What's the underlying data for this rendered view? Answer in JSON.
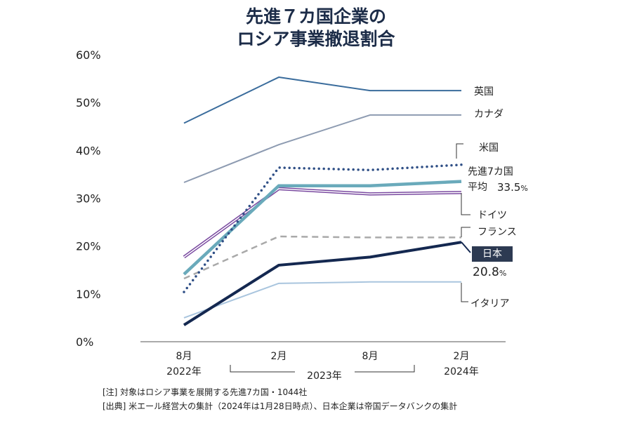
{
  "chart_data": {
    "type": "line",
    "title_lines": [
      "先進７カ国企業の",
      "ロシア事業撤退割合"
    ],
    "x_ticks": [
      {
        "month": "8月",
        "year": "2022年"
      },
      {
        "month": "2月",
        "year": ""
      },
      {
        "month": "8月",
        "year": ""
      },
      {
        "month": "2月",
        "year": "2024年"
      }
    ],
    "x_group_label": "2023年",
    "ylim": [
      0,
      60
    ],
    "y_ticks": [
      "0%",
      "10%",
      "20%",
      "30%",
      "40%",
      "50%",
      "60%"
    ],
    "y_tick_values": [
      0,
      10,
      20,
      30,
      40,
      50,
      60
    ],
    "grid": false,
    "legend": "direct labels at right",
    "series": [
      {
        "name": "英国",
        "values": [
          45.7,
          55.3,
          52.5,
          52.5
        ],
        "color": "#3a6c9c",
        "style": "solid"
      },
      {
        "name": "カナダ",
        "values": [
          33.3,
          41.2,
          47.4,
          47.4
        ],
        "color": "#8d9bb1",
        "style": "solid"
      },
      {
        "name": "米国",
        "values": [
          10.4,
          36.4,
          35.9,
          37.0
        ],
        "color": "#2f4f86",
        "style": "dotted"
      },
      {
        "name": "先進7カ国平均",
        "values": [
          14.1,
          32.6,
          32.6,
          33.5
        ],
        "color": "#6aaabb",
        "style": "thick"
      },
      {
        "name": "ドイツ",
        "values": [
          17.7,
          32.0,
          30.9,
          31.2
        ],
        "color": "#7a4aa0",
        "style": "double"
      },
      {
        "name": "フランス",
        "values": [
          13.2,
          22.0,
          21.8,
          21.8
        ],
        "color": "#a9a9a9",
        "style": "dashed"
      },
      {
        "name": "日本",
        "values": [
          3.5,
          16.0,
          17.7,
          20.8
        ],
        "color": "#142850",
        "style": "bold"
      },
      {
        "name": "イタリア",
        "values": [
          5.0,
          12.2,
          12.5,
          12.5
        ],
        "color": "#a9c5de",
        "style": "solid"
      }
    ],
    "labels": {
      "uk": "英国",
      "canada": "カナダ",
      "us": "米国",
      "avg_line1": "先進7カ国",
      "avg_line2": "平均",
      "avg_value": "33.5",
      "pct": "%",
      "germany": "ドイツ",
      "france": "フランス",
      "japan": "日本",
      "japan_value": "20.8",
      "italy": "イタリア"
    }
  },
  "notes": [
    "[注]  対象はロシア事業を展開する先進7カ国・1044社",
    "[出典]  米エール経営大の集計（2024年は1月28日時点）、日本企業は帝国データバンクの集計"
  ]
}
